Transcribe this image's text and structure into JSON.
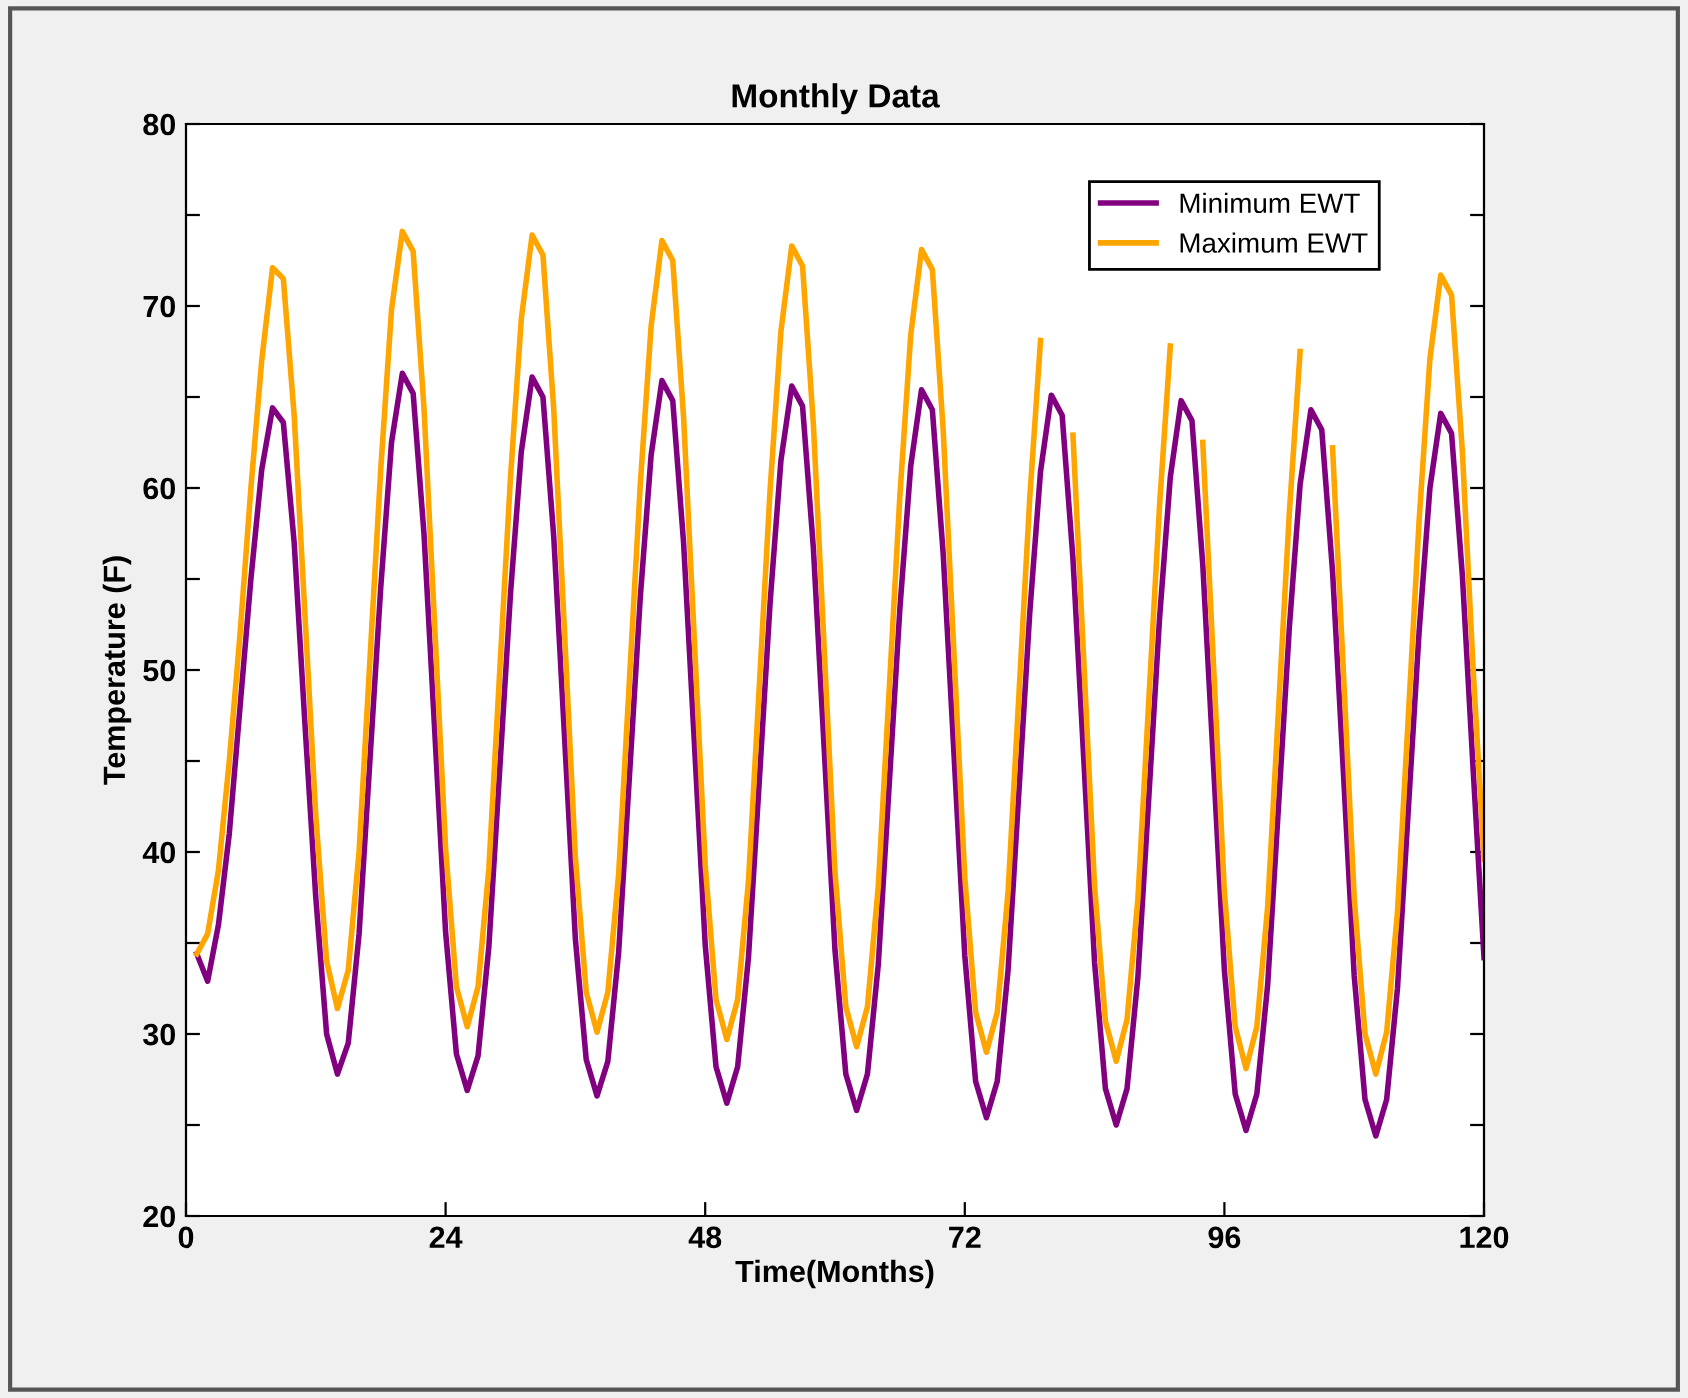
{
  "chart_data": {
    "type": "line",
    "title": "Monthly Data",
    "xlabel": "Time(Months)",
    "ylabel": "Temperature (F)",
    "x": [
      1,
      2,
      3,
      4,
      5,
      6,
      7,
      8,
      9,
      10,
      11,
      12,
      13,
      14,
      15,
      16,
      17,
      18,
      19,
      20,
      21,
      22,
      23,
      24,
      25,
      26,
      27,
      28,
      29,
      30,
      31,
      32,
      33,
      34,
      35,
      36,
      37,
      38,
      39,
      40,
      41,
      42,
      43,
      44,
      45,
      46,
      47,
      48,
      49,
      50,
      51,
      52,
      53,
      54,
      55,
      56,
      57,
      58,
      59,
      60,
      61,
      62,
      63,
      64,
      65,
      66,
      67,
      68,
      69,
      70,
      71,
      72,
      73,
      74,
      75,
      76,
      77,
      78,
      79,
      80,
      81,
      82,
      83,
      84,
      85,
      86,
      87,
      88,
      89,
      90,
      91,
      92,
      93,
      94,
      95,
      96,
      97,
      98,
      99,
      100,
      101,
      102,
      103,
      104,
      105,
      106,
      107,
      108,
      109,
      110,
      111,
      112,
      113,
      114,
      115,
      116,
      117,
      118,
      119,
      120
    ],
    "series": [
      {
        "name": "Minimum EWT",
        "color": "#800080",
        "values": [
          34.4,
          32.9,
          36,
          41,
          48,
          55,
          61,
          64.4,
          63.6,
          57,
          47,
          37.5,
          30,
          27.8,
          29.5,
          35.5,
          45,
          54.5,
          62.5,
          66.3,
          65.2,
          57.5,
          46.6,
          35.6,
          28.9,
          26.9,
          28.8,
          34.8,
          44.5,
          54.2,
          62,
          66.1,
          65.0,
          57.3,
          46.3,
          35.2,
          28.6,
          26.6,
          28.5,
          34.5,
          44.2,
          54,
          61.8,
          65.9,
          64.8,
          57,
          46,
          34.9,
          28.2,
          26.2,
          28.2,
          34.2,
          43.9,
          53.7,
          61.5,
          65.6,
          64.5,
          56.7,
          45.7,
          34.6,
          27.8,
          25.8,
          27.8,
          33.8,
          43.6,
          53.4,
          61.2,
          65.4,
          64.3,
          56.4,
          45.4,
          34.3,
          27.4,
          25.4,
          27.4,
          33.5,
          43.3,
          53.1,
          60.9,
          65.1,
          64,
          56.1,
          45.1,
          33.9,
          27.0,
          25.0,
          27.0,
          33.1,
          42.9,
          52.8,
          60.6,
          64.8,
          63.7,
          55.8,
          44.7,
          33.5,
          26.7,
          24.7,
          26.7,
          32.7,
          42.5,
          52.3,
          60.2,
          64.3,
          63.2,
          55.4,
          44.4,
          33.2,
          26.4,
          24.4,
          26.4,
          32.5,
          42.3,
          52.1,
          60,
          64.1,
          63,
          55.2,
          44.5,
          34.2
        ]
      },
      {
        "name": "Maximum EWT",
        "color": "#ffa500",
        "values": [
          34.4,
          35.5,
          39,
          45,
          52,
          60,
          67,
          72.1,
          71.5,
          64,
          53,
          42,
          34,
          31.4,
          33.5,
          40,
          50.5,
          61,
          69.8,
          74.1,
          73,
          64.4,
          52.3,
          40.2,
          32.6,
          30.4,
          32.6,
          39.1,
          49.9,
          60.6,
          69.3,
          73.9,
          72.8,
          64.3,
          52,
          39.7,
          32.3,
          30.1,
          32.3,
          38.8,
          49.5,
          60.2,
          68.9,
          73.6,
          72.5,
          63.9,
          51.6,
          39.3,
          31.9,
          29.7,
          31.9,
          38.4,
          49.1,
          59.9,
          68.6,
          73.3,
          72.2,
          63.5,
          51.2,
          38.9,
          31.5,
          29.3,
          31.5,
          38.1,
          48.8,
          59.6,
          68.4,
          73.1,
          72,
          63.2,
          50.9,
          38.6,
          31.2,
          29.0,
          31.2,
          37.8,
          48.6,
          59.4,
          68.1,
          null,
          null,
          62.9,
          50.5,
          38.1,
          30.7,
          28.5,
          30.8,
          37.4,
          48.2,
          59,
          67.8,
          null,
          null,
          62.5,
          50.2,
          37.8,
          30.4,
          28.1,
          30.4,
          37,
          47.8,
          58.6,
          67.5,
          null,
          null,
          62.2,
          49.9,
          37.5,
          30.0,
          27.8,
          30.1,
          36.7,
          47.4,
          58.2,
          67.1,
          71.7,
          70.6,
          62,
          50,
          39.6
        ]
      }
    ],
    "xlim": [
      0,
      120
    ],
    "xticks": [
      0,
      24,
      48,
      72,
      96,
      120
    ],
    "ylim": [
      20,
      80
    ],
    "yticks": [
      20,
      {
        "value": 25,
        "label": null
      },
      30,
      {
        "value": 35,
        "label": null
      },
      40,
      {
        "value": 45,
        "label": null
      },
      50,
      {
        "value": 55,
        "label": null
      },
      60,
      {
        "value": 65,
        "label": null
      },
      70,
      {
        "value": 75,
        "label": null
      },
      80
    ],
    "grid": false,
    "legend": "top right"
  }
}
